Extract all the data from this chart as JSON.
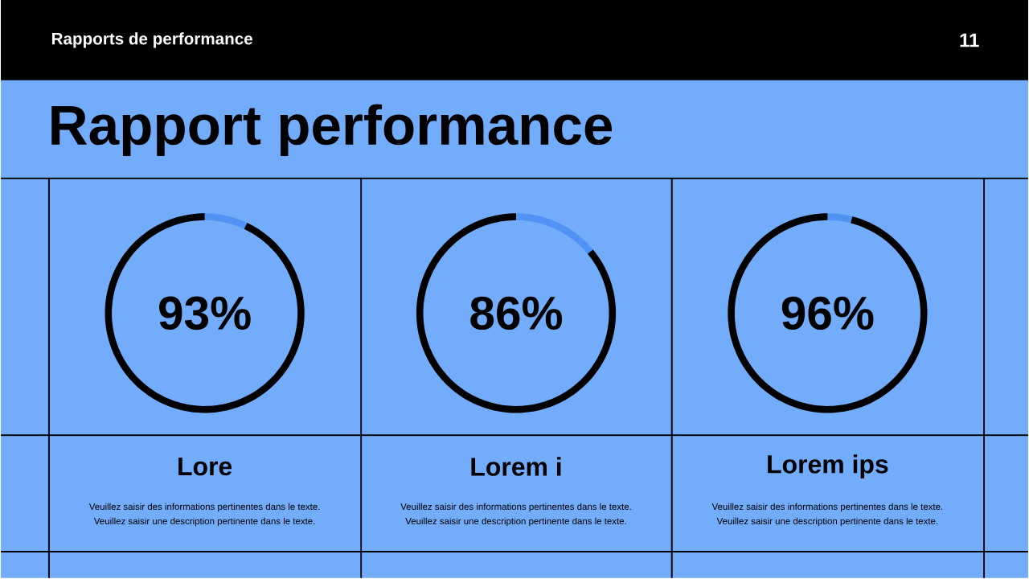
{
  "chart_data": [
    {
      "type": "other",
      "title": "Rapport performance",
      "subtitle": "Rapports de performance",
      "annotations": [
        "11"
      ]
    },
    {
      "type": "donut",
      "title": "Lore",
      "categories": [
        null,
        null
      ],
      "values": [
        93,
        7
      ],
      "colors": [
        "#000000",
        "#4f94f5"
      ],
      "value_labels": [
        "93%",
        null
      ],
      "annotations": [
        "Veuillez saisir des informations pertinentes dans le texte.",
        "Veuillez saisir une description pertinente dans le texte."
      ]
    },
    {
      "type": "donut",
      "title": "Lorem i",
      "categories": [
        null,
        null
      ],
      "values": [
        86,
        14
      ],
      "colors": [
        "#000000",
        "#4f94f5"
      ],
      "value_labels": [
        "86%",
        null
      ],
      "annotations": [
        "Veuillez saisir des informations pertinentes dans le texte.",
        "Veuillez saisir une description pertinente dans le texte."
      ]
    },
    {
      "type": "donut",
      "title": "Lorem ips",
      "categories": [
        null,
        null
      ],
      "values": [
        96,
        4
      ],
      "colors": [
        "#000000",
        "#4f94f5"
      ],
      "value_labels": [
        "96%",
        null
      ],
      "annotations": [
        "Veuillez saisir des informations pertinentes dans le texte.",
        "Veuillez saisir une description pertinente dans le texte."
      ]
    }
  ]
}
